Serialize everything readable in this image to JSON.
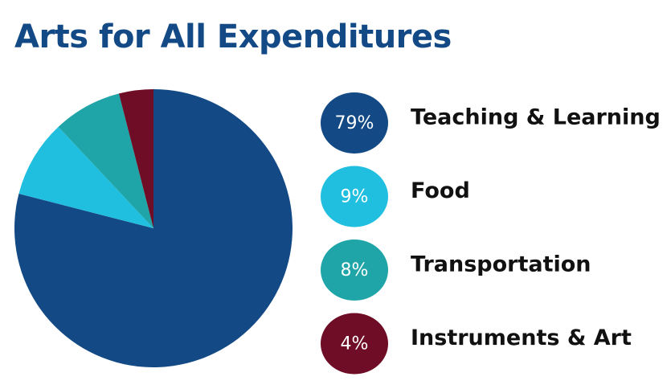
{
  "chart_data": {
    "type": "pie",
    "title": "Arts for All Expenditures",
    "categories": [
      "Teaching & Learning",
      "Food",
      "Transportation",
      "Instruments & Art"
    ],
    "values": [
      79,
      9,
      8,
      4
    ],
    "value_labels": [
      "79%",
      "9%",
      "8%",
      "4%"
    ],
    "colors": [
      "#134a85",
      "#20bfe0",
      "#1fa5a8",
      "#6e0d25"
    ]
  }
}
